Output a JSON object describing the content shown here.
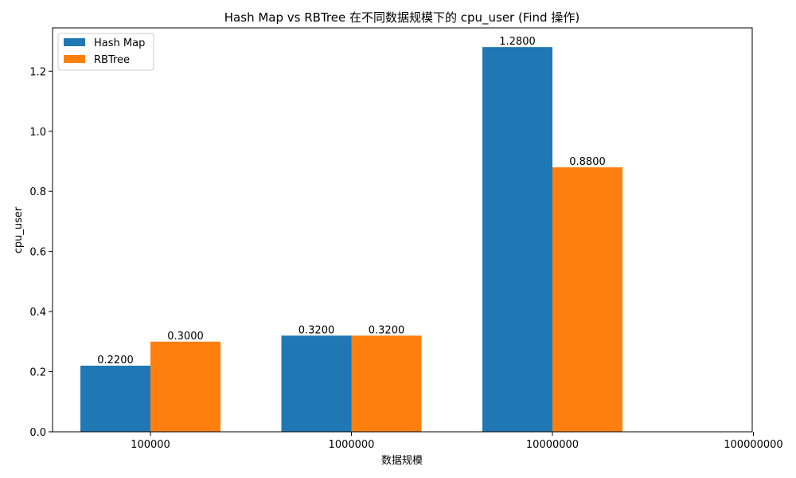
{
  "chart_data": {
    "type": "bar",
    "title": "Hash Map vs RBTree 在不同数据规模下的 cpu_user (Find 操作)",
    "xlabel": "数据规模",
    "ylabel": "cpu_user",
    "categories": [
      "100000",
      "1000000",
      "10000000",
      "100000000"
    ],
    "series": [
      {
        "name": "Hash Map",
        "color": "#1f77b4",
        "values": [
          0.22,
          0.32,
          1.28,
          null
        ],
        "labels": [
          "0.2200",
          "0.3200",
          "1.2800",
          null
        ]
      },
      {
        "name": "RBTree",
        "color": "#ff7f0e",
        "values": [
          0.3,
          0.32,
          0.88,
          null
        ],
        "labels": [
          "0.3000",
          "0.3200",
          "0.8800",
          null
        ]
      }
    ],
    "ylim": [
      0,
      1.344
    ],
    "yticks": [
      0.0,
      0.2,
      0.4,
      0.6,
      0.8,
      1.0,
      1.2
    ],
    "ytick_labels": [
      "0.0",
      "0.2",
      "0.4",
      "0.6",
      "0.8",
      "1.0",
      "1.2"
    ],
    "grid": false,
    "legend_position": "top-left"
  }
}
